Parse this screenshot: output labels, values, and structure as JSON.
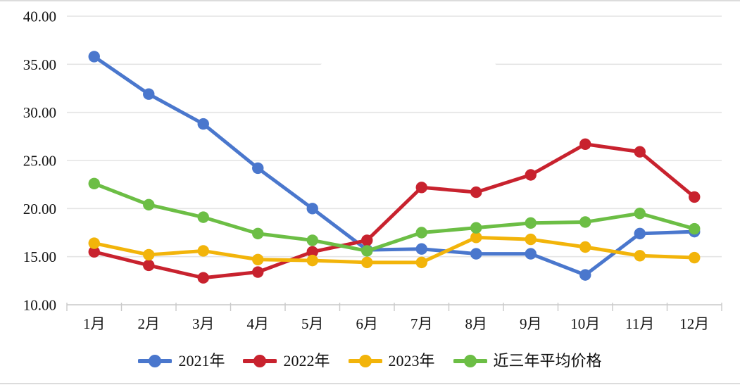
{
  "chart_data": {
    "type": "line",
    "title": "",
    "xlabel": "",
    "ylabel": "",
    "categories": [
      "1月",
      "2月",
      "3月",
      "4月",
      "5月",
      "6月",
      "7月",
      "8月",
      "9月",
      "10月",
      "11月",
      "12月"
    ],
    "series": [
      {
        "name": "2021年",
        "color": "#4a77cd",
        "values": [
          35.8,
          31.9,
          28.8,
          24.2,
          20.0,
          15.7,
          15.8,
          15.3,
          15.3,
          13.1,
          17.4,
          17.6
        ]
      },
      {
        "name": "2022年",
        "color": "#c8222e",
        "values": [
          15.5,
          14.1,
          12.8,
          13.4,
          15.5,
          16.7,
          22.2,
          21.7,
          23.5,
          26.7,
          25.9,
          21.2
        ]
      },
      {
        "name": "2023年",
        "color": "#f2b40a",
        "values": [
          16.4,
          15.2,
          15.6,
          14.7,
          14.6,
          14.4,
          14.4,
          17.0,
          16.8,
          16.0,
          15.1,
          14.9
        ]
      },
      {
        "name": "近三年平均价格",
        "color": "#6cbe45",
        "values": [
          22.6,
          20.4,
          19.1,
          17.4,
          16.7,
          15.6,
          17.5,
          18.0,
          18.5,
          18.6,
          19.5,
          17.9
        ]
      }
    ],
    "y_axis": {
      "min": 10,
      "max": 40,
      "step": 5,
      "tick_labels": [
        "10.00",
        "15.00",
        "20.00",
        "25.00",
        "30.00",
        "35.00",
        "40.00"
      ]
    },
    "grid": true,
    "legend_position": "bottom",
    "colors": {
      "gridline": "#e4e4e4",
      "axis_line": "#c9c9c9",
      "tick_mark": "#c9c9c9",
      "label_text": "#141414"
    }
  }
}
